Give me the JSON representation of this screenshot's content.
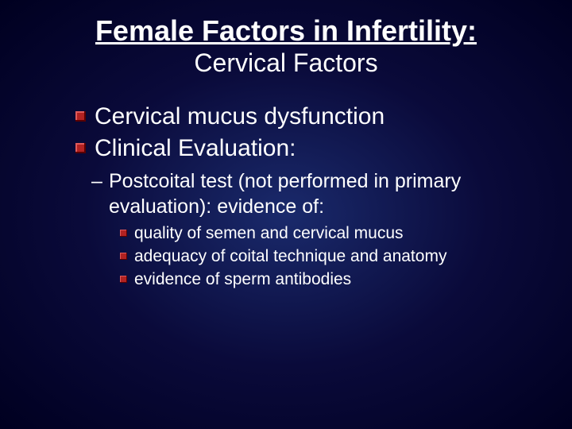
{
  "slide": {
    "background": {
      "type": "radial-gradient",
      "center_color": "#1a2a6c",
      "mid_color": "#0a0a3a",
      "edge_color": "#000020"
    },
    "text_color": "#ffffff",
    "bullet_color": "#b22222",
    "title": {
      "text": "Female Factors in Infertility:",
      "fontsize": 36,
      "underline": true
    },
    "subtitle": {
      "text": "Cervical Factors",
      "fontsize": 32
    },
    "bullets_l1": [
      "Cervical mucus dysfunction",
      "Clinical Evaluation:"
    ],
    "bullet_l2": {
      "dash": "–",
      "text": "Postcoital test (not performed in primary evaluation): evidence of:"
    },
    "bullets_l3": [
      "quality of semen and cervical mucus",
      "adequacy of coital technique and anatomy",
      "evidence of sperm antibodies"
    ],
    "fonts": {
      "family": "Arial",
      "l1_size": 30,
      "l2_size": 25,
      "l3_size": 21
    }
  }
}
